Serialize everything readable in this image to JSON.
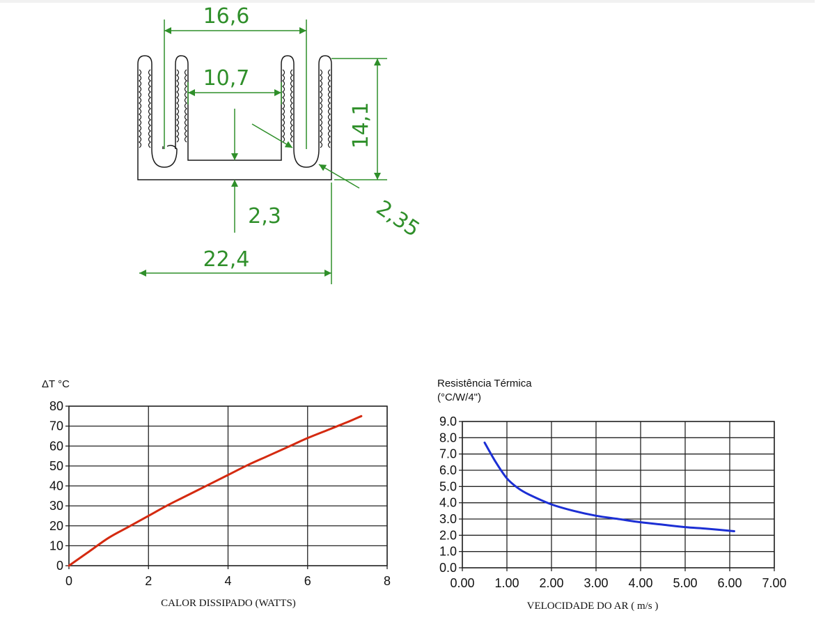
{
  "drawing": {
    "dimensions": {
      "top_width": "16,6",
      "inner_width": "10,7",
      "height": "14,1",
      "base_thickness": "2,3",
      "fin_thickness": "2,35",
      "total_width": "22,4"
    },
    "line_color": "#2f8f2a"
  },
  "chart_data": [
    {
      "type": "line",
      "title": "",
      "ylabel": "ΔT °C",
      "xlabel": "CALOR DISSIPADO (WATTS)",
      "xlim": [
        0,
        8
      ],
      "ylim": [
        0,
        80
      ],
      "x_ticks": [
        "0",
        "2",
        "4",
        "6",
        "8"
      ],
      "y_ticks": [
        "0",
        "10",
        "20",
        "30",
        "40",
        "50",
        "60",
        "70",
        "80"
      ],
      "grid": true,
      "color": "#d42a10",
      "series": [
        {
          "x": [
            0,
            0.5,
            1,
            1.5,
            2,
            2.5,
            3,
            3.5,
            4,
            4.5,
            5,
            5.5,
            6,
            6.5,
            7,
            7.35
          ],
          "values": [
            0,
            7,
            14,
            19.5,
            25,
            30.5,
            35.5,
            40.5,
            45.5,
            50.5,
            55,
            59.5,
            64,
            68,
            72,
            75
          ]
        }
      ]
    },
    {
      "type": "line",
      "title": "",
      "ylabel_lines": [
        "Resistência Térmica",
        "(°C/W/4\")"
      ],
      "xlabel": "VELOCIDADE DO AR ( m/s )",
      "xlim": [
        0,
        7
      ],
      "ylim": [
        0,
        9
      ],
      "x_ticks": [
        "0.00",
        "1.00",
        "2.00",
        "3.00",
        "4.00",
        "5.00",
        "6.00",
        "7.00"
      ],
      "y_ticks": [
        "0.0",
        "1.0",
        "2.0",
        "3.0",
        "4.0",
        "5.0",
        "6.0",
        "7.0",
        "8.0",
        "9.0"
      ],
      "grid": true,
      "color": "#1c2fd4",
      "series": [
        {
          "x": [
            0.5,
            0.75,
            1.0,
            1.25,
            1.5,
            2.0,
            2.5,
            3.0,
            3.5,
            4.0,
            4.5,
            5.0,
            5.5,
            6.1
          ],
          "values": [
            7.7,
            6.5,
            5.5,
            4.9,
            4.5,
            3.9,
            3.5,
            3.2,
            3.0,
            2.8,
            2.65,
            2.5,
            2.4,
            2.25
          ]
        }
      ]
    }
  ]
}
